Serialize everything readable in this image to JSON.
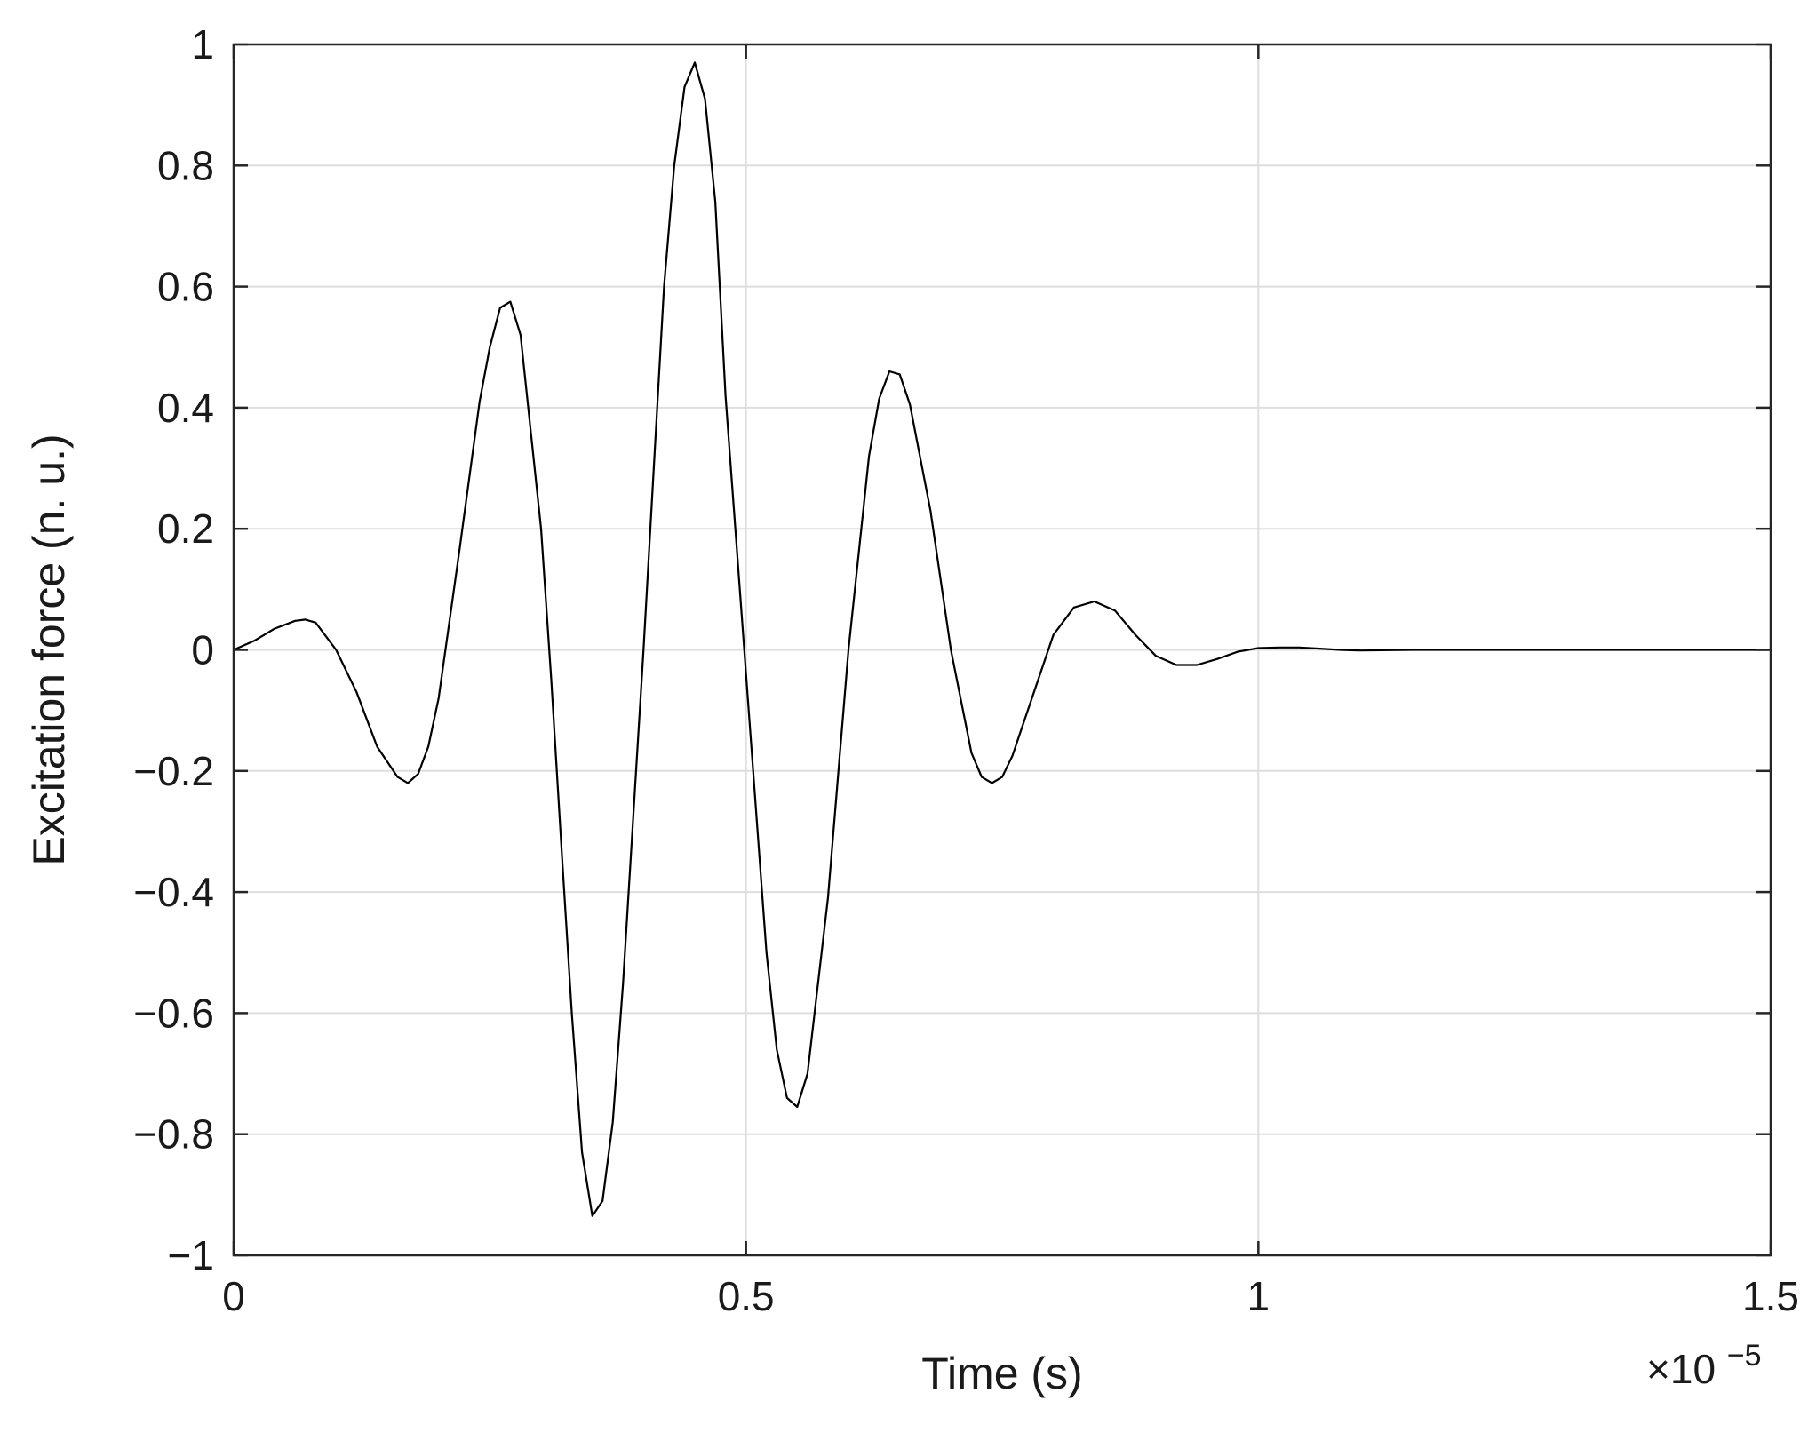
{
  "chart_data": {
    "type": "line",
    "xlabel": "Time (s)",
    "ylabel": "Excitation force (n. u.)",
    "x_multiplier_label": "×10",
    "x_multiplier_exponent": "−5",
    "xlim": [
      0,
      1.5
    ],
    "ylim": [
      -1,
      1
    ],
    "x_ticks": [
      0,
      0.5,
      1,
      1.5
    ],
    "x_tick_labels": [
      "0",
      "0.5",
      "1",
      "1.5"
    ],
    "y_ticks": [
      1,
      0.8,
      0.6,
      0.4,
      0.2,
      0,
      -0.2,
      -0.4,
      -0.6,
      -0.8,
      -1
    ],
    "y_tick_labels": [
      "1",
      "0.8",
      "0.6",
      "0.4",
      "0.2",
      "0",
      "−0.2",
      "−0.4",
      "−0.6",
      "−0.8",
      "−1"
    ],
    "grid": true,
    "line_color": "#000000",
    "grid_color": "#dedede",
    "series": [
      {
        "x": [
          0,
          0.02,
          0.04,
          0.06,
          0.07,
          0.08,
          0.1,
          0.12,
          0.14,
          0.16,
          0.17,
          0.18,
          0.19,
          0.2,
          0.22,
          0.24,
          0.25,
          0.26,
          0.27,
          0.28,
          0.3,
          0.31,
          0.32,
          0.33,
          0.34,
          0.35,
          0.36,
          0.37,
          0.38,
          0.4,
          0.42,
          0.43,
          0.44,
          0.45,
          0.46,
          0.47,
          0.48,
          0.5,
          0.52,
          0.53,
          0.54,
          0.55,
          0.56,
          0.58,
          0.6,
          0.62,
          0.63,
          0.64,
          0.65,
          0.66,
          0.68,
          0.7,
          0.72,
          0.73,
          0.74,
          0.75,
          0.76,
          0.78,
          0.8,
          0.82,
          0.84,
          0.86,
          0.88,
          0.9,
          0.92,
          0.94,
          0.96,
          0.98,
          1.0,
          1.02,
          1.04,
          1.06,
          1.08,
          1.1,
          1.15,
          1.2,
          1.25,
          1.3,
          1.35,
          1.4,
          1.45,
          1.5
        ],
        "y": [
          0,
          0.015,
          0.035,
          0.048,
          0.05,
          0.045,
          0.0,
          -0.07,
          -0.16,
          -0.21,
          -0.22,
          -0.205,
          -0.16,
          -0.08,
          0.16,
          0.41,
          0.5,
          0.565,
          0.575,
          0.52,
          0.2,
          -0.05,
          -0.33,
          -0.6,
          -0.83,
          -0.935,
          -0.91,
          -0.78,
          -0.55,
          0.0,
          0.6,
          0.8,
          0.93,
          0.97,
          0.91,
          0.74,
          0.42,
          -0.04,
          -0.5,
          -0.66,
          -0.74,
          -0.755,
          -0.7,
          -0.41,
          0.0,
          0.32,
          0.415,
          0.46,
          0.455,
          0.405,
          0.23,
          0.0,
          -0.17,
          -0.21,
          -0.22,
          -0.21,
          -0.175,
          -0.075,
          0.025,
          0.07,
          0.08,
          0.065,
          0.025,
          -0.01,
          -0.025,
          -0.025,
          -0.015,
          -0.003,
          0.003,
          0.004,
          0.004,
          0.002,
          0.0,
          -0.001,
          0.0,
          0.0,
          0.0,
          0.0,
          0.0,
          0.0,
          0.0,
          0.0
        ]
      }
    ]
  }
}
